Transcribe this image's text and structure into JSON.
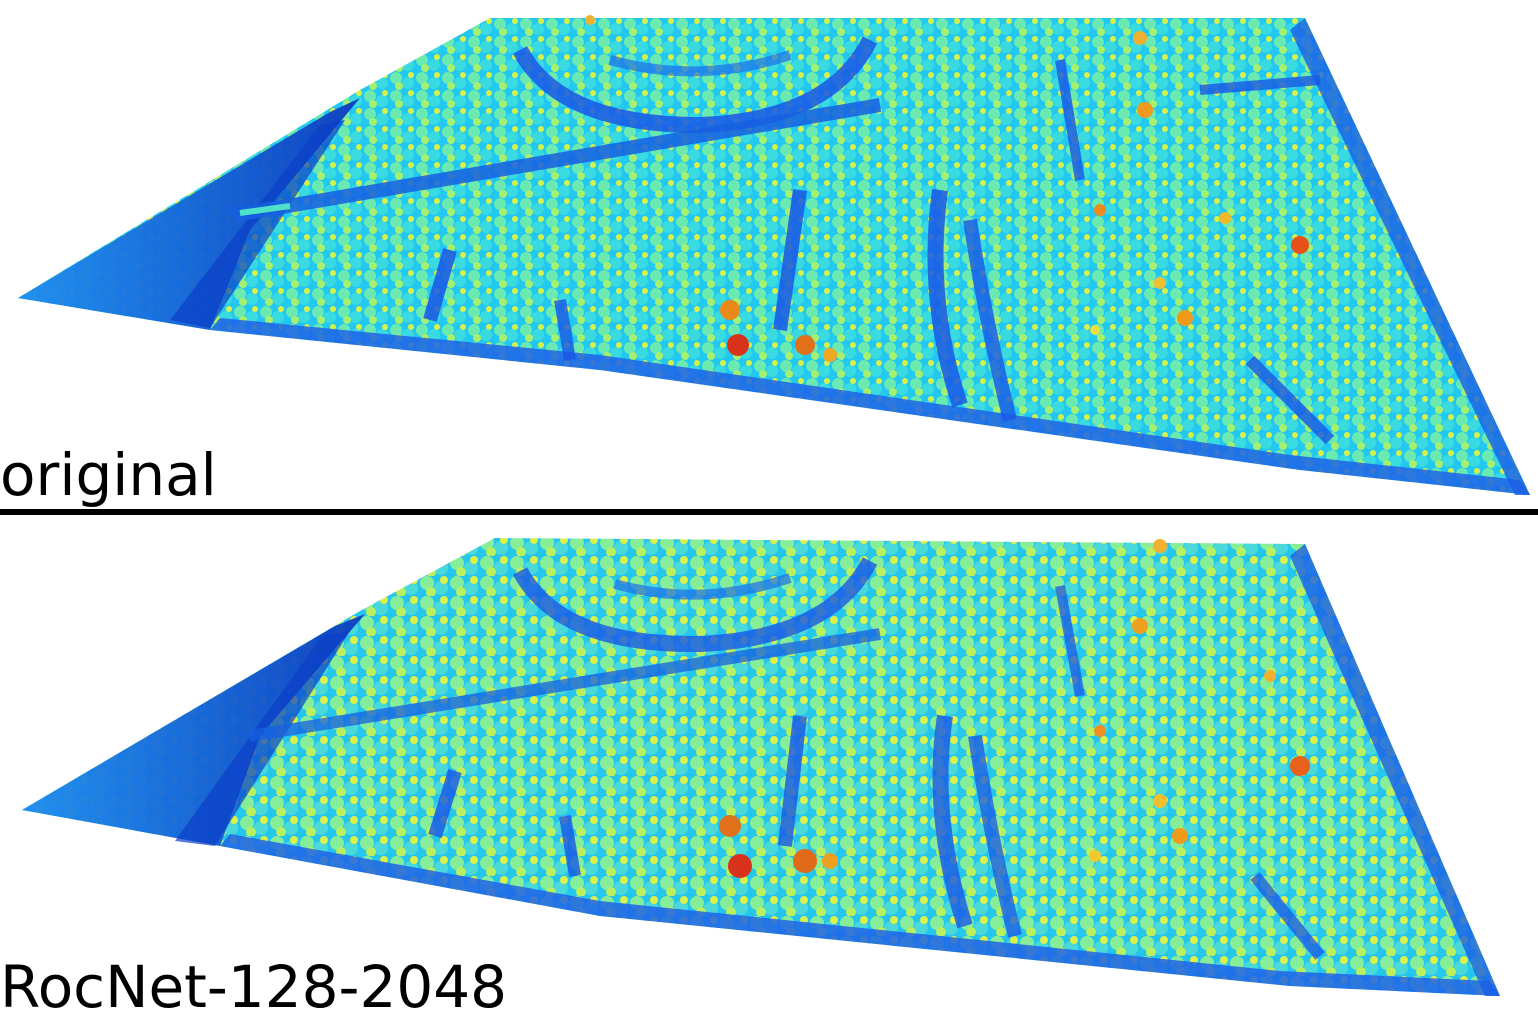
{
  "panels": [
    {
      "caption": "original",
      "colors": {
        "ground": "#1a6fe8",
        "ground_dark": "#0b3fc8",
        "road": "#1957e6",
        "low_canopy": "#22d6f0",
        "mid_canopy": "#7ef08a",
        "high_canopy": "#e8f040",
        "peak": "#e8451a"
      }
    },
    {
      "caption": "RocNet-128-2048",
      "colors": {
        "ground": "#1a6fe8",
        "ground_dark": "#0b3fc8",
        "road": "#1957e6",
        "low_canopy": "#22d6f0",
        "mid_canopy": "#7ef08a",
        "high_canopy": "#e8f040",
        "peak": "#e8451a"
      }
    }
  ],
  "colormap": "jet"
}
